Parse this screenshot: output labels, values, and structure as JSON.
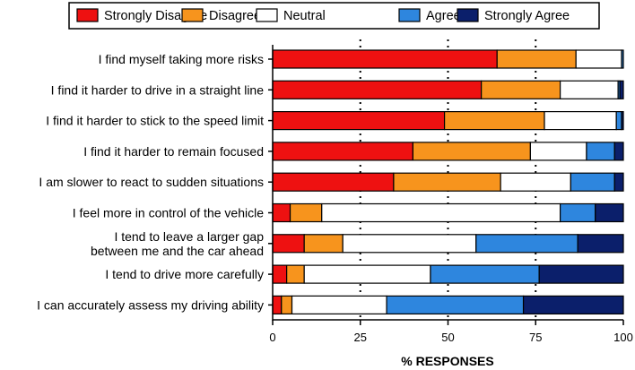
{
  "chart_data": {
    "type": "bar",
    "orientation": "horizontal",
    "stacked": true,
    "title": "",
    "xlabel": "% RESPONSES",
    "ylabel": "",
    "xlim": [
      0,
      100
    ],
    "x_ticks": [
      0,
      25,
      50,
      75,
      100
    ],
    "gridlines": "dotted vertical at 25, 50, 75",
    "legend_position": "top",
    "categories": [
      [
        "I find myself taking more risks"
      ],
      [
        "I find it harder to drive in a straight line"
      ],
      [
        "I find it harder to stick to the speed limit"
      ],
      [
        "I find it harder to remain focused"
      ],
      [
        "I am slower to react to sudden situations"
      ],
      [
        "I feel more in control of the vehicle"
      ],
      [
        "I tend to leave a larger gap",
        "between me and the car ahead"
      ],
      [
        "I tend to drive more carefully"
      ],
      [
        "I can accurately assess my driving ability"
      ]
    ],
    "series": [
      {
        "name": "Strongly Disagree",
        "color": "#ee1111",
        "values": [
          64,
          59.5,
          49,
          40,
          34.5,
          5,
          9,
          4,
          2.5
        ]
      },
      {
        "name": "Disagree",
        "color": "#f7941d",
        "values": [
          22.5,
          22.5,
          28.5,
          33.5,
          30.5,
          9,
          11,
          5,
          3
        ]
      },
      {
        "name": "Neutral",
        "color": "#ffffff",
        "values": [
          13,
          16.5,
          20.5,
          16,
          20,
          68,
          38,
          36,
          27
        ]
      },
      {
        "name": "Agree",
        "color": "#2e86de",
        "values": [
          0.5,
          0.5,
          1.5,
          8,
          12.5,
          10,
          29,
          31,
          39
        ]
      },
      {
        "name": "Strongly Agree",
        "color": "#0b1f6b",
        "values": [
          0,
          1,
          0.5,
          2.5,
          2.5,
          8,
          13,
          24,
          28.5
        ]
      }
    ]
  }
}
